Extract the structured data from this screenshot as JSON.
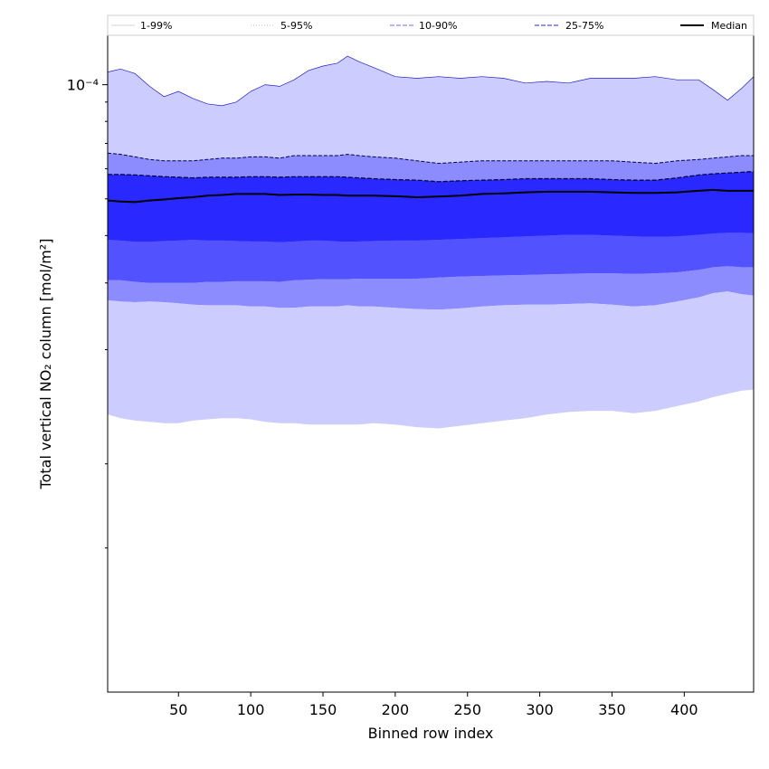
{
  "chart_data": {
    "type": "area",
    "xlabel": "Binned row index",
    "ylabel": "Total vertical NO₂ column [mol/m²]",
    "y_scale": "log",
    "xlim": [
      1,
      448
    ],
    "ylim": [
      2.5e-06,
      0.000135
    ],
    "x_ticks": [
      50,
      100,
      150,
      200,
      250,
      300,
      350,
      400
    ],
    "x_tick_labels": [
      "50",
      "100",
      "150",
      "200",
      "250",
      "300",
      "350",
      "400"
    ],
    "y_major_ticks": [
      0.0001
    ],
    "y_major_tick_labels": [
      "10⁻⁴"
    ],
    "y_minor_ticks": [
      6e-06,
      1e-05,
      2e-05,
      3e-05,
      4e-05,
      5e-05,
      6e-05,
      7e-05,
      8e-05,
      9e-05
    ],
    "legend_position": "top",
    "legend": [
      {
        "label": "1-99%",
        "color": "#dcdcf0",
        "style": "solid"
      },
      {
        "label": "5-95%",
        "color": "#c8c8f0",
        "style": "dotted"
      },
      {
        "label": "10-90%",
        "color": "#8c8cf0",
        "style": "dashed"
      },
      {
        "label": "25-75%",
        "color": "#5050e6",
        "style": "dashed"
      },
      {
        "label": "Median",
        "color": "#000000",
        "style": "solid"
      }
    ],
    "band_colors": {
      "1-99": "#ffffff",
      "5-95": "#ccccff",
      "10-90": "#8c8cff",
      "25-75": "#5252ff",
      "inner": "#2828ff"
    },
    "x": [
      1,
      10,
      20,
      30,
      40,
      50,
      60,
      70,
      80,
      90,
      100,
      110,
      120,
      130,
      140,
      150,
      160,
      167,
      175,
      185,
      200,
      215,
      230,
      245,
      260,
      275,
      290,
      305,
      320,
      335,
      350,
      365,
      380,
      395,
      410,
      420,
      430,
      440,
      448
    ],
    "series": [
      {
        "name": "95%",
        "values": [
          0.000108,
          0.00011,
          0.000107,
          9.9e-05,
          9.3e-05,
          9.6e-05,
          9.2e-05,
          8.9e-05,
          8.8e-05,
          9e-05,
          9.6e-05,
          0.0001,
          9.9e-05,
          0.000103,
          0.000109,
          0.000112,
          0.000114,
          0.000119,
          0.000115,
          0.000111,
          0.000105,
          0.000104,
          0.000105,
          0.000104,
          0.000105,
          0.000104,
          0.000101,
          0.000102,
          0.000101,
          0.000104,
          0.000104,
          0.000104,
          0.000105,
          0.000103,
          0.000103,
          9.7e-05,
          9.1e-05,
          9.8e-05,
          0.000105
        ]
      },
      {
        "name": "90%",
        "values": [
          6.6e-05,
          6.55e-05,
          6.45e-05,
          6.35e-05,
          6.3e-05,
          6.3e-05,
          6.3e-05,
          6.35e-05,
          6.4e-05,
          6.4e-05,
          6.45e-05,
          6.45e-05,
          6.4e-05,
          6.5e-05,
          6.5e-05,
          6.5e-05,
          6.5e-05,
          6.55e-05,
          6.5e-05,
          6.45e-05,
          6.4e-05,
          6.3e-05,
          6.2e-05,
          6.25e-05,
          6.3e-05,
          6.3e-05,
          6.3e-05,
          6.3e-05,
          6.3e-05,
          6.3e-05,
          6.3e-05,
          6.25e-05,
          6.2e-05,
          6.3e-05,
          6.35e-05,
          6.4e-05,
          6.45e-05,
          6.5e-05,
          6.5e-05
        ]
      },
      {
        "name": "75%",
        "values": [
          5.8e-05,
          5.8e-05,
          5.78e-05,
          5.75e-05,
          5.72e-05,
          5.7e-05,
          5.68e-05,
          5.7e-05,
          5.7e-05,
          5.7e-05,
          5.72e-05,
          5.72e-05,
          5.7e-05,
          5.72e-05,
          5.72e-05,
          5.72e-05,
          5.72e-05,
          5.7e-05,
          5.68e-05,
          5.65e-05,
          5.62e-05,
          5.6e-05,
          5.55e-05,
          5.58e-05,
          5.6e-05,
          5.62e-05,
          5.65e-05,
          5.65e-05,
          5.65e-05,
          5.65e-05,
          5.62e-05,
          5.6e-05,
          5.6e-05,
          5.68e-05,
          5.78e-05,
          5.82e-05,
          5.85e-05,
          5.88e-05,
          5.9e-05
        ]
      },
      {
        "name": "Median",
        "values": [
          4.95e-05,
          4.92e-05,
          4.9e-05,
          4.95e-05,
          4.98e-05,
          5.02e-05,
          5.05e-05,
          5.1e-05,
          5.12e-05,
          5.15e-05,
          5.15e-05,
          5.15e-05,
          5.12e-05,
          5.13e-05,
          5.13e-05,
          5.12e-05,
          5.12e-05,
          5.1e-05,
          5.1e-05,
          5.1e-05,
          5.08e-05,
          5.05e-05,
          5.07e-05,
          5.1e-05,
          5.15e-05,
          5.17e-05,
          5.2e-05,
          5.22e-05,
          5.22e-05,
          5.22e-05,
          5.2e-05,
          5.18e-05,
          5.18e-05,
          5.2e-05,
          5.25e-05,
          5.28e-05,
          5.25e-05,
          5.25e-05,
          5.25e-05
        ]
      },
      {
        "name": "25%",
        "values": [
          3.9e-05,
          3.88e-05,
          3.85e-05,
          3.85e-05,
          3.87e-05,
          3.88e-05,
          3.9e-05,
          3.88e-05,
          3.88e-05,
          3.87e-05,
          3.86e-05,
          3.86e-05,
          3.84e-05,
          3.86e-05,
          3.88e-05,
          3.88e-05,
          3.86e-05,
          3.85e-05,
          3.86e-05,
          3.87e-05,
          3.88e-05,
          3.88e-05,
          3.9e-05,
          3.92e-05,
          3.94e-05,
          3.96e-05,
          3.98e-05,
          4e-05,
          4.02e-05,
          4.02e-05,
          4e-05,
          3.98e-05,
          3.97e-05,
          3.98e-05,
          4.02e-05,
          4.05e-05,
          4.07e-05,
          4.07e-05,
          4.06e-05
        ]
      },
      {
        "name": "10%",
        "values": [
          3.05e-05,
          3.05e-05,
          3.02e-05,
          3e-05,
          3e-05,
          3e-05,
          3e-05,
          3.02e-05,
          3.02e-05,
          3.03e-05,
          3.03e-05,
          3.03e-05,
          3.02e-05,
          3.05e-05,
          3.06e-05,
          3.07e-05,
          3.07e-05,
          3.07e-05,
          3.08e-05,
          3.08e-05,
          3.08e-05,
          3.08e-05,
          3.1e-05,
          3.12e-05,
          3.13e-05,
          3.14e-05,
          3.15e-05,
          3.16e-05,
          3.17e-05,
          3.18e-05,
          3.18e-05,
          3.17e-05,
          3.18e-05,
          3.2e-05,
          3.25e-05,
          3.3e-05,
          3.32e-05,
          3.3e-05,
          3.3e-05
        ]
      },
      {
        "name": "5%",
        "values": [
          2.7e-05,
          2.68e-05,
          2.67e-05,
          2.68e-05,
          2.67e-05,
          2.65e-05,
          2.63e-05,
          2.62e-05,
          2.62e-05,
          2.62e-05,
          2.6e-05,
          2.6e-05,
          2.58e-05,
          2.58e-05,
          2.6e-05,
          2.6e-05,
          2.6e-05,
          2.62e-05,
          2.6e-05,
          2.6e-05,
          2.58e-05,
          2.56e-05,
          2.55e-05,
          2.57e-05,
          2.6e-05,
          2.62e-05,
          2.63e-05,
          2.63e-05,
          2.64e-05,
          2.65e-05,
          2.63e-05,
          2.6e-05,
          2.62e-05,
          2.68e-05,
          2.75e-05,
          2.82e-05,
          2.85e-05,
          2.8e-05,
          2.78e-05
        ]
      },
      {
        "name": "1%",
        "values": [
          1.35e-05,
          1.32e-05,
          1.3e-05,
          1.29e-05,
          1.28e-05,
          1.28e-05,
          1.3e-05,
          1.31e-05,
          1.32e-05,
          1.32e-05,
          1.31e-05,
          1.29e-05,
          1.28e-05,
          1.28e-05,
          1.27e-05,
          1.27e-05,
          1.27e-05,
          1.27e-05,
          1.27e-05,
          1.28e-05,
          1.27e-05,
          1.25e-05,
          1.24e-05,
          1.26e-05,
          1.28e-05,
          1.3e-05,
          1.32e-05,
          1.35e-05,
          1.37e-05,
          1.38e-05,
          1.38e-05,
          1.36e-05,
          1.38e-05,
          1.42e-05,
          1.46e-05,
          1.5e-05,
          1.53e-05,
          1.56e-05,
          1.57e-05
        ]
      }
    ]
  }
}
